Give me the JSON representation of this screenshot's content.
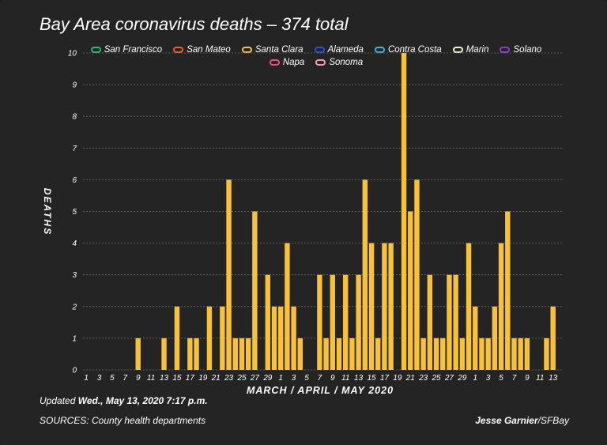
{
  "title": "Bay Area coronavirus deaths – 374 total",
  "legend": [
    {
      "name": "San Francisco",
      "color": "#2bb673"
    },
    {
      "name": "San Mateo",
      "color": "#e8602c"
    },
    {
      "name": "Santa Clara",
      "color": "#f8c13a"
    },
    {
      "name": "Alameda",
      "color": "#2d4fd6"
    },
    {
      "name": "Contra Costa",
      "color": "#3fb0d8"
    },
    {
      "name": "Marin",
      "color": "#eef0cc"
    },
    {
      "name": "Solano",
      "color": "#8a3fc9"
    },
    {
      "name": "Napa",
      "color": "#e84f8a"
    },
    {
      "name": "Sonoma",
      "color": "#f2a1a8"
    }
  ],
  "footer": {
    "updated_prefix": "Updated",
    "updated_value": "Wed., May 13, 2020 7:17 p.m.",
    "sources": "SOURCES: County health departments",
    "credit_name": "Jesse Garnier",
    "credit_org": "/SFBay"
  },
  "chart_data": {
    "type": "bar",
    "title": "Bay Area coronavirus deaths – 374 total",
    "xlabel": "MARCH / APRIL / MAY 2020",
    "ylabel": "DEATHS",
    "ylim": [
      0,
      10
    ],
    "yticks": [
      "0",
      "1",
      "2",
      "3",
      "4",
      "5",
      "6",
      "7",
      "8",
      "9",
      "10"
    ],
    "grid": true,
    "legend_position": "top",
    "bar_color": "#f8c13a",
    "xtick_labels": [
      "1",
      "3",
      "5",
      "7",
      "9",
      "11",
      "13",
      "15",
      "17",
      "19",
      "21",
      "23",
      "25",
      "27",
      "29",
      "1",
      "3",
      "5",
      "7",
      "9",
      "11",
      "13",
      "15",
      "17",
      "19",
      "21",
      "23",
      "25",
      "27",
      "29",
      "1",
      "3",
      "5",
      "7",
      "9",
      "11",
      "13"
    ],
    "categories": [
      "Mar 1",
      "Mar 2",
      "Mar 3",
      "Mar 4",
      "Mar 5",
      "Mar 6",
      "Mar 7",
      "Mar 8",
      "Mar 9",
      "Mar 10",
      "Mar 11",
      "Mar 12",
      "Mar 13",
      "Mar 14",
      "Mar 15",
      "Mar 16",
      "Mar 17",
      "Mar 18",
      "Mar 19",
      "Mar 20",
      "Mar 21",
      "Mar 22",
      "Mar 23",
      "Mar 24",
      "Mar 25",
      "Mar 26",
      "Mar 27",
      "Mar 28",
      "Mar 29",
      "Mar 30",
      "Mar 31",
      "Apr 1",
      "Apr 2",
      "Apr 3",
      "Apr 4",
      "Apr 5",
      "Apr 6",
      "Apr 7",
      "Apr 8",
      "Apr 9",
      "Apr 10",
      "Apr 11",
      "Apr 12",
      "Apr 13",
      "Apr 14",
      "Apr 15",
      "Apr 16",
      "Apr 17",
      "Apr 18",
      "Apr 19",
      "Apr 20",
      "Apr 21",
      "Apr 22",
      "Apr 23",
      "Apr 24",
      "Apr 25",
      "Apr 26",
      "Apr 27",
      "Apr 28",
      "Apr 29",
      "Apr 30",
      "May 1",
      "May 2",
      "May 3",
      "May 4",
      "May 5",
      "May 6",
      "May 7",
      "May 8",
      "May 9",
      "May 10",
      "May 11",
      "May 12",
      "May 13"
    ],
    "series": [
      {
        "name": "Santa Clara",
        "values": [
          0,
          0,
          0,
          0,
          0,
          0,
          0,
          0,
          1,
          0,
          0,
          0,
          1,
          0,
          2,
          0,
          1,
          1,
          0,
          2,
          0,
          2,
          6,
          1,
          1,
          1,
          5,
          0,
          3,
          2,
          2,
          4,
          2,
          1,
          0,
          0,
          3,
          1,
          3,
          1,
          3,
          1,
          3,
          6,
          4,
          1,
          4,
          4,
          0,
          10,
          5,
          6,
          1,
          3,
          1,
          1,
          3,
          3,
          1,
          4,
          2,
          1,
          1,
          2,
          4,
          5,
          1,
          1,
          1,
          0,
          0,
          1,
          2,
          0
        ]
      }
    ]
  }
}
